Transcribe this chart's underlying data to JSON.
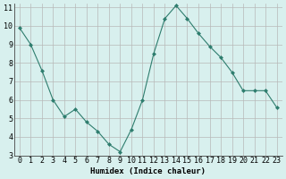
{
  "x": [
    0,
    1,
    2,
    3,
    4,
    5,
    6,
    7,
    8,
    9,
    10,
    11,
    12,
    13,
    14,
    15,
    16,
    17,
    18,
    19,
    20,
    21,
    22,
    23
  ],
  "y": [
    9.9,
    9.0,
    7.6,
    6.0,
    5.1,
    5.5,
    4.8,
    4.3,
    3.6,
    3.2,
    4.4,
    6.0,
    8.5,
    10.4,
    11.1,
    10.4,
    9.6,
    8.9,
    8.3,
    7.5,
    6.5,
    6.5,
    6.5,
    5.6
  ],
  "line_color": "#2e7d6e",
  "marker": "D",
  "marker_size": 2,
  "bg_color": "#d8f0ee",
  "grid_color": "#b8b8b8",
  "xlabel": "Humidex (Indice chaleur)",
  "xlim": [
    -0.5,
    23.5
  ],
  "ylim": [
    3,
    11.2
  ],
  "yticks": [
    3,
    4,
    5,
    6,
    7,
    8,
    9,
    10,
    11
  ],
  "xticks": [
    0,
    1,
    2,
    3,
    4,
    5,
    6,
    7,
    8,
    9,
    10,
    11,
    12,
    13,
    14,
    15,
    16,
    17,
    18,
    19,
    20,
    21,
    22,
    23
  ],
  "xlabel_fontsize": 6.5,
  "tick_fontsize": 6,
  "linewidth": 0.8
}
